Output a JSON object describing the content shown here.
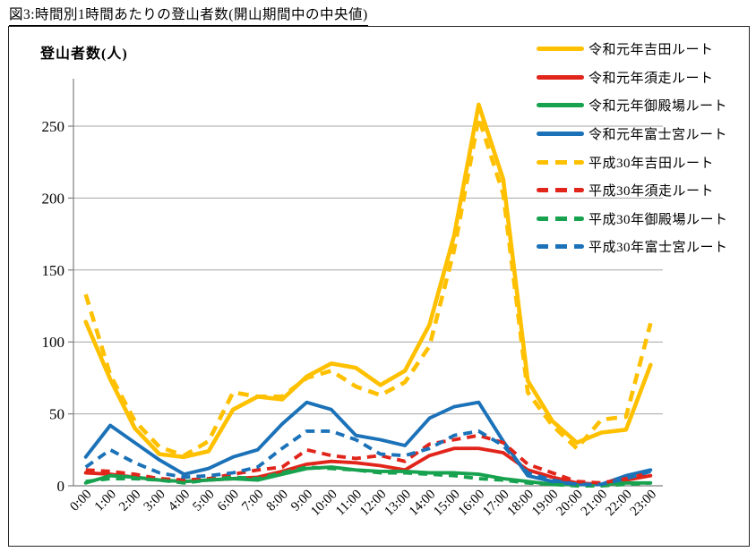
{
  "figure": {
    "title": "図3:時間別1時間あたりの登山者数(開山期間中の中央値)"
  },
  "chart": {
    "y_axis_title": "登山者数(人)"
  },
  "chart_data": {
    "type": "line",
    "title": "図3:時間別1時間あたりの登山者数(開山期間中の中央値)",
    "xlabel": "",
    "ylabel": "登山者数(人)",
    "ylim": [
      0,
      283
    ],
    "y_ticks": [
      0,
      50,
      100,
      150,
      200,
      250
    ],
    "grid": true,
    "legend_position": "top-right",
    "categories": [
      "0:00",
      "1:00",
      "2:00",
      "3:00",
      "4:00",
      "5:00",
      "6:00",
      "7:00",
      "8:00",
      "9:00",
      "10:00",
      "11:00",
      "12:00",
      "13:00",
      "14:00",
      "15:00",
      "16:00",
      "17:00",
      "18:00",
      "19:00",
      "20:00",
      "21:00",
      "22:00",
      "23:00"
    ],
    "series": [
      {
        "key": "reiwa-yoshida",
        "name": "令和元年吉田ルート",
        "color": "#FFC000",
        "dash": "solid",
        "values": [
          114,
          74,
          40,
          22,
          20,
          24,
          53,
          62,
          60,
          76,
          85,
          82,
          70,
          80,
          112,
          174,
          265,
          213,
          73,
          45,
          30,
          37,
          39,
          84
        ]
      },
      {
        "key": "reiwa-subashiri",
        "name": "令和元年須走ルート",
        "color": "#E1251B",
        "dash": "solid",
        "values": [
          9,
          8,
          6,
          4,
          3,
          4,
          5,
          6,
          10,
          15,
          17,
          16,
          14,
          11,
          21,
          26,
          26,
          23,
          11,
          6,
          2,
          1,
          4,
          7
        ]
      },
      {
        "key": "reiwa-gotemba",
        "name": "令和元年御殿場ルート",
        "color": "#17A24F",
        "dash": "solid",
        "values": [
          2,
          7,
          6,
          4,
          3,
          4,
          5,
          4,
          8,
          12,
          13,
          11,
          10,
          10,
          9,
          9,
          8,
          5,
          3,
          1,
          1,
          1,
          2,
          2
        ]
      },
      {
        "key": "reiwa-fujinomiya",
        "name": "令和元年富士宮ルート",
        "color": "#1B72B8",
        "dash": "solid",
        "values": [
          20,
          42,
          30,
          18,
          8,
          12,
          20,
          25,
          43,
          58,
          53,
          35,
          32,
          28,
          47,
          55,
          58,
          31,
          7,
          3,
          1,
          1,
          7,
          11
        ]
      },
      {
        "key": "heisei30-yoshida",
        "name": "平成30年吉田ルート",
        "color": "#FFC000",
        "dash": "dashed",
        "values": [
          133,
          77,
          45,
          27,
          21,
          31,
          65,
          62,
          62,
          75,
          80,
          69,
          63,
          72,
          97,
          164,
          256,
          203,
          65,
          42,
          26,
          46,
          48,
          113
        ]
      },
      {
        "key": "heisei30-subashiri",
        "name": "平成30年須走ルート",
        "color": "#E1251B",
        "dash": "dashed",
        "values": [
          11,
          10,
          8,
          5,
          4,
          5,
          8,
          11,
          13,
          25,
          21,
          19,
          21,
          17,
          29,
          32,
          35,
          30,
          15,
          9,
          3,
          2,
          5,
          9
        ]
      },
      {
        "key": "heisei30-gotemba",
        "name": "平成30年御殿場ルート",
        "color": "#17A24F",
        "dash": "dashed",
        "values": [
          3,
          5,
          5,
          4,
          2,
          4,
          6,
          5,
          9,
          13,
          12,
          11,
          9,
          9,
          8,
          7,
          5,
          4,
          2,
          1,
          0,
          0,
          1,
          2
        ]
      },
      {
        "key": "heisei30-fujinomiya",
        "name": "平成30年富士宮ルート",
        "color": "#1B72B8",
        "dash": "dashed",
        "values": [
          13,
          25,
          16,
          9,
          6,
          7,
          9,
          13,
          26,
          38,
          38,
          32,
          22,
          21,
          26,
          35,
          38,
          28,
          9,
          4,
          1,
          1,
          5,
          10
        ]
      }
    ],
    "axis_color": "#7F7F7F",
    "grid_color": "#A6A6A6"
  }
}
